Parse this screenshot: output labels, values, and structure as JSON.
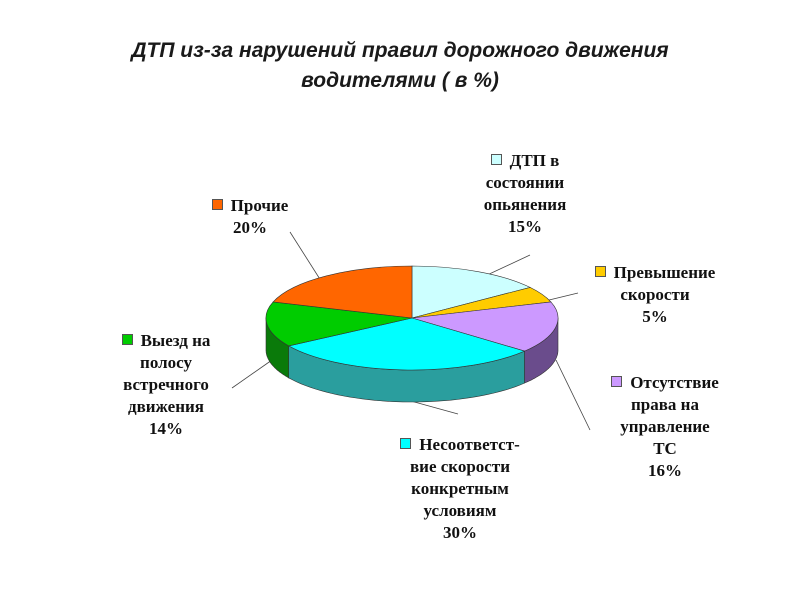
{
  "chart_data": {
    "type": "pie",
    "title_lines": [
      "ДТП из-за нарушений правил дорожного движения",
      "водителями  ( в %)"
    ],
    "slices": [
      {
        "label_lines": [
          "ДТП в",
          "состоянии",
          "опьянения"
        ],
        "value": 15,
        "value_text": "15%",
        "color": "#ccffff",
        "side_color": "#8fbfbf"
      },
      {
        "label_lines": [
          "Превышение",
          "скорости"
        ],
        "value": 5,
        "value_text": "5%",
        "color": "#ffcc00",
        "side_color": "#b38f00"
      },
      {
        "label_lines": [
          "Отсутствие",
          "права на",
          "управление",
          "ТС"
        ],
        "value": 16,
        "value_text": "16%",
        "color": "#cc99ff",
        "side_color": "#6a4c8c"
      },
      {
        "label_lines": [
          "Несоответст-",
          "вие скорости",
          "конкретным",
          "условиям"
        ],
        "value": 30,
        "value_text": "30%",
        "color": "#00ffff",
        "side_color": "#2a9e9e"
      },
      {
        "label_lines": [
          "Выезд на",
          "полосу",
          "встречного",
          "движения"
        ],
        "value": 14,
        "value_text": "14%",
        "color": "#00cc00",
        "side_color": "#0a7a0a"
      },
      {
        "label_lines": [
          "Прочие"
        ],
        "value": 20,
        "value_text": "20%",
        "color": "#ff6600",
        "side_color": "#b34700"
      }
    ]
  }
}
